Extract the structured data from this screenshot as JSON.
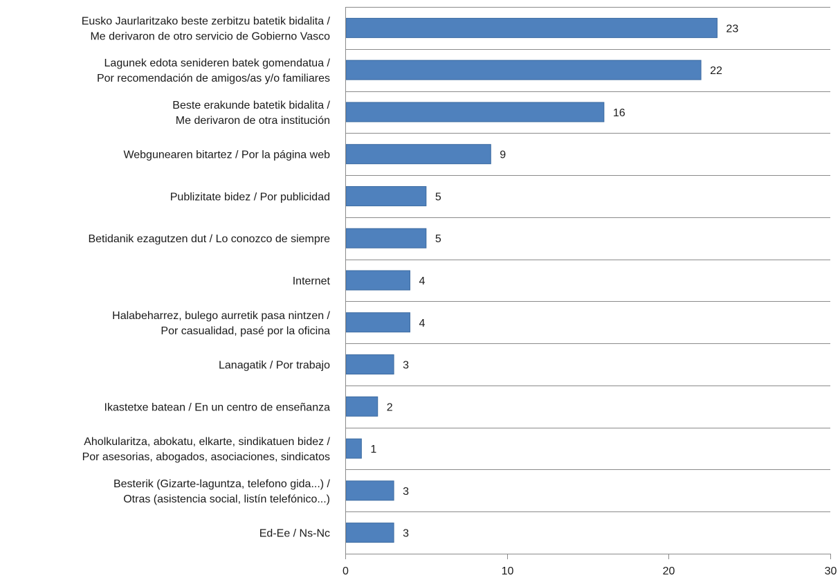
{
  "chart_data": {
    "type": "bar",
    "orientation": "horizontal",
    "categories": [
      [
        "Eusko Jaurlaritzako beste zerbitzu batetik bidalita /",
        "Me derivaron de otro servicio de Gobierno Vasco"
      ],
      [
        "Lagunek edota senideren batek gomendatua /",
        "Por recomendación de amigos/as y/o familiares"
      ],
      [
        "Beste erakunde batetik bidalita /",
        "Me derivaron de otra institución"
      ],
      [
        "Webgunearen bitartez / Por la página web"
      ],
      [
        "Publizitate bidez / Por publicidad"
      ],
      [
        "Betidanik ezagutzen dut / Lo conozco de siempre"
      ],
      [
        "Internet"
      ],
      [
        "Halabeharrez, bulego aurretik pasa nintzen /",
        "Por casualidad, pasé por la oficina"
      ],
      [
        "Lanagatik / Por trabajo"
      ],
      [
        "Ikastetxe batean / En un centro de enseñanza"
      ],
      [
        "Aholkularitza, abokatu, elkarte, sindikatuen bidez /",
        "Por asesorias, abogados, asociaciones, sindicatos"
      ],
      [
        "Besterik (Gizarte-laguntza, telefono gida...) /",
        "Otras (asistencia social, listín telefónico...)"
      ],
      [
        "Ed-Ee / Ns-Nc"
      ]
    ],
    "values": [
      23,
      22,
      16,
      9,
      5,
      5,
      4,
      4,
      3,
      2,
      1,
      3,
      3
    ],
    "xlim": [
      0,
      30
    ],
    "xticks": [
      0,
      10,
      20,
      30
    ],
    "grid": "horizontal",
    "bar_color": "#4f81bd",
    "data_labels": true,
    "legend": "none"
  }
}
